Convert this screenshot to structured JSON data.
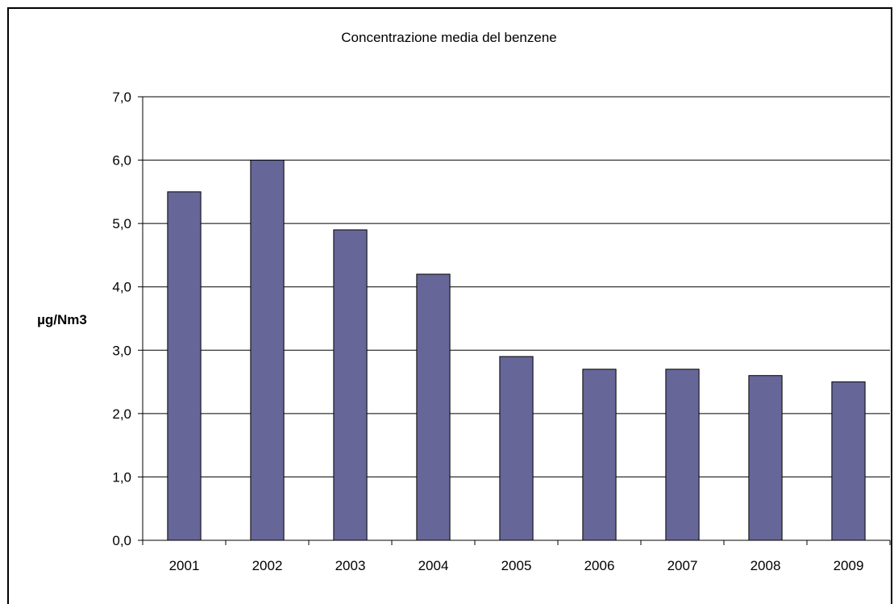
{
  "chart_data": {
    "type": "bar",
    "title": "Concentrazione media del benzene",
    "xlabel": "",
    "ylabel": "µg/Nm3",
    "categories": [
      "2001",
      "2002",
      "2003",
      "2004",
      "2005",
      "2006",
      "2007",
      "2008",
      "2009"
    ],
    "values": [
      5.5,
      6.0,
      4.9,
      4.2,
      2.9,
      2.7,
      2.7,
      2.6,
      2.5
    ],
    "ylim": [
      0,
      7
    ],
    "yticks": [
      0,
      1,
      2,
      3,
      4,
      5,
      6,
      7
    ],
    "ytick_labels": [
      "0,0",
      "1,0",
      "2,0",
      "3,0",
      "4,0",
      "5,0",
      "6,0",
      "7,0"
    ],
    "grid": true,
    "legend": "none",
    "bar_color": "#666699"
  }
}
